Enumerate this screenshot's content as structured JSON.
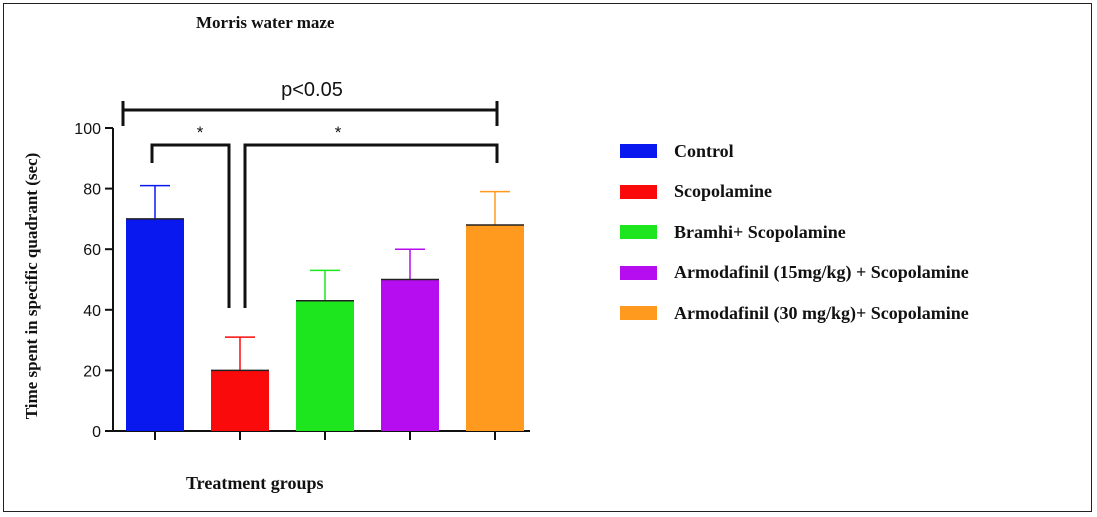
{
  "chart_data": {
    "type": "bar",
    "title": "Morris water maze",
    "xlabel": "Treatment groups",
    "ylabel": "Time spent in specific quadrant (sec)",
    "ylim": [
      0,
      100
    ],
    "yticks": [
      0,
      20,
      40,
      60,
      80,
      100
    ],
    "categories": [
      "Control",
      "Scopolamine",
      "Bramhi+ Scopolamine",
      "Armodafinil (15mg/kg) + Scopolamine",
      "Armodafinil (30 mg/kg)+ Scopolamine"
    ],
    "values": [
      70,
      20,
      43,
      50,
      68
    ],
    "errors": [
      11,
      11,
      10,
      10,
      11
    ],
    "colors": [
      "#0a18f0",
      "#fa0a0a",
      "#1ee61e",
      "#b50df0",
      "#ff9a1e"
    ],
    "legend_position": "right",
    "grid": false,
    "annotations": {
      "overall": "p<0.05",
      "pair1": "*",
      "pair2": "*"
    }
  }
}
